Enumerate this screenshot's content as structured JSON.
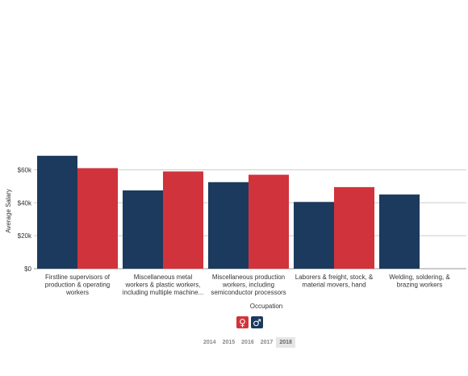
{
  "chart_data": {
    "type": "bar",
    "ylabel": "Average Salary",
    "xlabel": "Occupation",
    "ylim": [
      0,
      70000
    ],
    "yticks": [
      0,
      20000,
      40000,
      60000
    ],
    "ytick_labels": [
      "$0",
      "$20k",
      "$40k",
      "$60k"
    ],
    "grid": true,
    "categories": [
      [
        "Firstline supervisors of",
        "production & operating",
        "workers"
      ],
      [
        "Miscellaneous metal",
        "workers & plastic workers,",
        "including multiple machine..."
      ],
      [
        "Miscellaneous production",
        "workers, including",
        "semiconductor processors"
      ],
      [
        "Laborers & freight, stock, &",
        "material movers, hand"
      ],
      [
        "Welding, soldering, &",
        "brazing workers"
      ]
    ],
    "series": [
      {
        "name": "Male",
        "color": "#1c3a5e",
        "values": [
          68500,
          47500,
          52500,
          40500,
          45000
        ]
      },
      {
        "name": "Female",
        "color": "#d0333b",
        "values": [
          61000,
          59000,
          57000,
          49500,
          null
        ]
      }
    ]
  },
  "legend": {
    "female_icon": "female-symbol-icon",
    "female_glyph": "♀",
    "male_icon": "male-symbol-icon",
    "male_glyph": "♂"
  },
  "years": {
    "items": [
      "2014",
      "2015",
      "2016",
      "2017",
      "2018"
    ],
    "selected": "2018"
  }
}
